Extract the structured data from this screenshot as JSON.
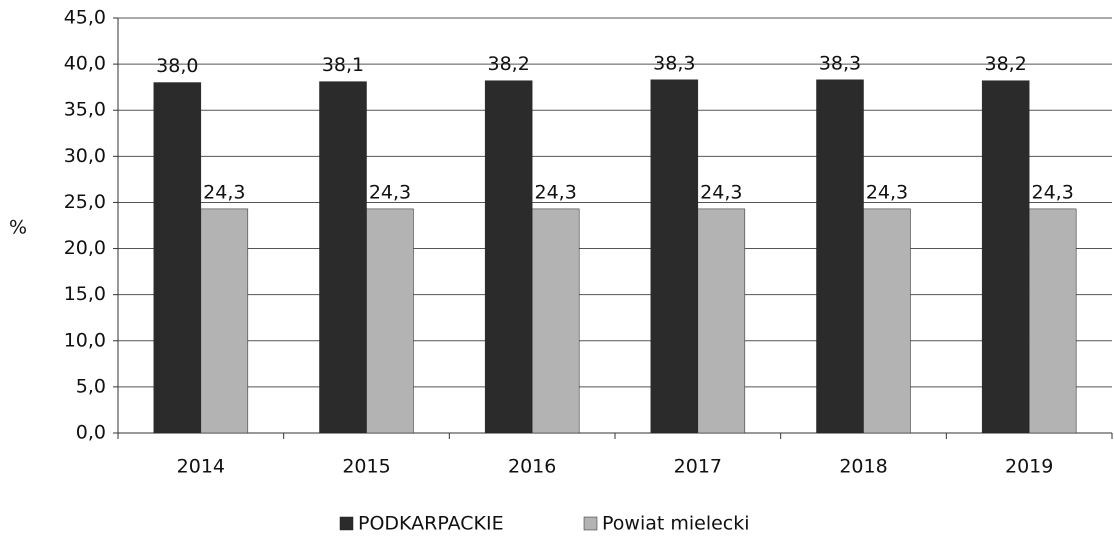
{
  "chart_data": {
    "type": "bar",
    "y_label": "%",
    "categories": [
      "2014",
      "2015",
      "2016",
      "2017",
      "2018",
      "2019"
    ],
    "series": [
      {
        "name": "PODKARPACKIE",
        "color": "#2b2b2b",
        "values": [
          38.0,
          38.1,
          38.2,
          38.3,
          38.3,
          38.2
        ],
        "value_labels": [
          "38,0",
          "38,1",
          "38,2",
          "38,3",
          "38,3",
          "38,2"
        ]
      },
      {
        "name": "Powiat mielecki",
        "color": "#b3b3b3",
        "values": [
          24.3,
          24.3,
          24.3,
          24.3,
          24.3,
          24.3
        ],
        "value_labels": [
          "24,3",
          "24,3",
          "24,3",
          "24,3",
          "24,3",
          "24,3"
        ]
      }
    ],
    "ylim": [
      0,
      45
    ],
    "yticks": [
      {
        "value": 0,
        "label": "0,0"
      },
      {
        "value": 5,
        "label": "5,0"
      },
      {
        "value": 10,
        "label": "10,0"
      },
      {
        "value": 15,
        "label": "15,0"
      },
      {
        "value": 20,
        "label": "20,0"
      },
      {
        "value": 25,
        "label": "25,0"
      },
      {
        "value": 30,
        "label": "30,0"
      },
      {
        "value": 35,
        "label": "35,0"
      },
      {
        "value": 40,
        "label": "40,0"
      },
      {
        "value": 45,
        "label": "45,0"
      }
    ],
    "grid": true,
    "legend": "bottom"
  }
}
